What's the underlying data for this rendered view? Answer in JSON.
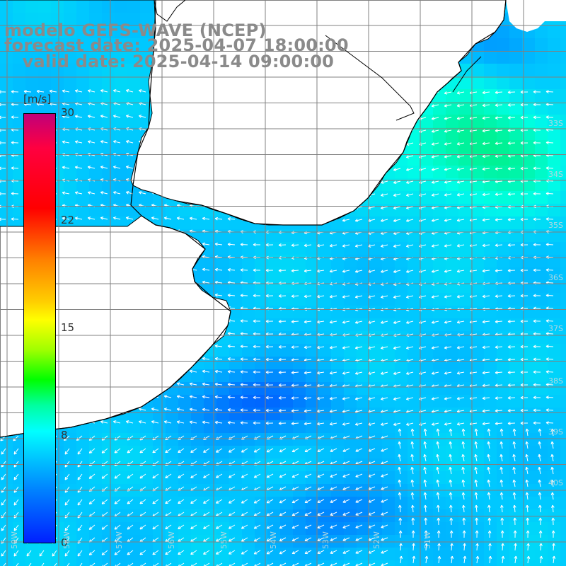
{
  "title": {
    "line1": "modelo GEFS-WAVE (NCEP)",
    "line2": "forecast date: 2025-04-07 18:00:00",
    "line3": "   valid date: 2025-04-14 09:00:00"
  },
  "colorbar": {
    "unit": "[m/s]",
    "ticks": [
      "30",
      "22",
      "15",
      "8",
      "0"
    ],
    "tick_values": [
      30,
      22,
      15,
      8,
      0
    ],
    "range": [
      0,
      30
    ]
  },
  "map": {
    "land_color": "#ffffff",
    "grid_color": "#808080",
    "coast_color": "#000000",
    "arrow_color": "#ffffff",
    "lat_labels": [
      "33S",
      "34S",
      "35S",
      "36S",
      "37S",
      "38S",
      "39S",
      "40S"
    ],
    "lon_labels": [
      "59W",
      "58W",
      "57W",
      "56W",
      "55W",
      "54W",
      "53W",
      "52W",
      "51W"
    ]
  }
}
